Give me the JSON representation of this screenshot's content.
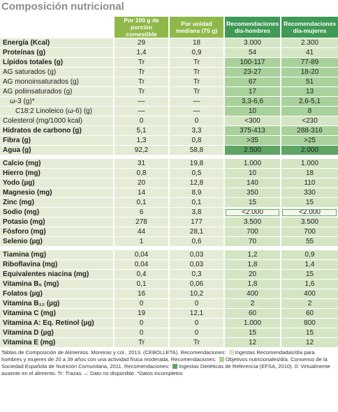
{
  "title": "Composición nutricional",
  "header": {
    "columns": [
      "Por 100 g de porción comestible",
      "Por unidad mediana (75 g)",
      "Recomendaciones día-hombres",
      "Recomendaciones día-mujeres"
    ]
  },
  "sections": [
    {
      "rows": [
        {
          "label": "Energía (Kcal)",
          "values": [
            "29",
            "18",
            "3.000",
            "2.300"
          ]
        },
        {
          "label": "Proteínas (g)",
          "values": [
            "1,4",
            "0,9",
            "54",
            "41"
          ]
        },
        {
          "label": "Lípidos totales (g)",
          "values": [
            "Tr",
            "Tr",
            "100-117",
            "77-89"
          ]
        },
        {
          "label": "AG saturados (g)",
          "values": [
            "Tr",
            "Tr",
            "23-27",
            "18-20"
          ]
        },
        {
          "label": "AG monoinsaturados (g)",
          "values": [
            "Tr",
            "Tr",
            "67",
            "51"
          ]
        },
        {
          "label": "AG poliinsaturados (g)",
          "values": [
            "Tr",
            "Tr",
            "17",
            "13"
          ]
        },
        {
          "label": "ω-3 (g)*",
          "values": [
            "—",
            "—",
            "3,3-6,6",
            "2,6-5,1"
          ]
        },
        {
          "label": "C18:2 Linoleico (ω-6) (g)",
          "values": [
            "—",
            "—",
            "10",
            "8"
          ]
        },
        {
          "label": "Colesterol (mg/1000 kcal)",
          "values": [
            "0",
            "0",
            "<300",
            "<230"
          ]
        },
        {
          "label": "Hidratos de carbono (g)",
          "values": [
            "5,1",
            "3,3",
            "375-413",
            "288-316"
          ]
        },
        {
          "label": "Fibra (g)",
          "values": [
            "1,3",
            "0,8",
            ">35",
            ">25"
          ]
        },
        {
          "label": "Agua (g)",
          "values": [
            "92,2",
            "58,8",
            "2.500",
            "2.000"
          ]
        }
      ]
    },
    {
      "rows": [
        {
          "label": "Calcio (mg)",
          "values": [
            "31",
            "19,8",
            "1.000",
            "1.000"
          ]
        },
        {
          "label": "Hierro (mg)",
          "values": [
            "0,8",
            "0,5",
            "10",
            "18"
          ]
        },
        {
          "label": "Yodo (µg)",
          "values": [
            "20",
            "12,8",
            "140",
            "110"
          ]
        },
        {
          "label": "Magnesio (mg)",
          "values": [
            "14",
            "8,9",
            "350",
            "330"
          ]
        },
        {
          "label": "Zinc (mg)",
          "values": [
            "0,1",
            "0,1",
            "15",
            "15"
          ]
        },
        {
          "label": "Sodio (mg)",
          "values": [
            "6",
            "3,8",
            "<2.000",
            "<2.000"
          ]
        },
        {
          "label": "Potasio (mg)",
          "values": [
            "278",
            "177",
            "3.500",
            "3.500"
          ]
        },
        {
          "label": "Fósforo (mg)",
          "values": [
            "44",
            "28,1",
            "700",
            "700"
          ]
        },
        {
          "label": "Selenio (µg)",
          "values": [
            "1",
            "0,6",
            "70",
            "55"
          ]
        }
      ]
    },
    {
      "rows": [
        {
          "label": "Tiamina (mg)",
          "values": [
            "0,04",
            "0,03",
            "1,2",
            "0,9"
          ]
        },
        {
          "label": "Riboflavina (mg)",
          "values": [
            "0,04",
            "0,03",
            "1,8",
            "1,4"
          ]
        },
        {
          "label": "Equivalentes niacina (mg)",
          "values": [
            "0,4",
            "0,3",
            "20",
            "15"
          ]
        },
        {
          "label": "Vitamina B₆ (mg)",
          "values": [
            "0,1",
            "0,06",
            "1,8",
            "1,6"
          ]
        },
        {
          "label": "Folatos (µg)",
          "values": [
            "16",
            "10,2",
            "400",
            "400"
          ]
        },
        {
          "label": "Vitamina B₁₂ (µg)",
          "values": [
            "0",
            "0",
            "2",
            "2"
          ]
        },
        {
          "label": "Vitamina C (mg)",
          "values": [
            "19",
            "12,1",
            "60",
            "60"
          ]
        },
        {
          "label": "Vitamina A: Eq. Retinol (µg)",
          "values": [
            "0",
            "0",
            "1.000",
            "800"
          ]
        },
        {
          "label": "Vitamina D (µg)",
          "values": [
            "0",
            "0",
            "15",
            "15"
          ]
        },
        {
          "label": "Vitamina E (mg)",
          "values": [
            "Tr",
            "Tr",
            "12",
            "12"
          ]
        }
      ]
    }
  ],
  "footnote": {
    "parts": [
      "Tablas de Composición de Alimentos. Moreiras y col., 2013. (CEBOLLETA). Recomendaciones: ",
      "Ingestas Recomendadas/día para hombres y mujeres de 20 a 39 años con una actividad física moderada. Recomendaciones: ",
      "Objetivos nutricionales/día. Consenso de la Sociedad Española de Nutrición Comunitaria, 2011. Recomendaciones: ",
      "Ingestas Dietéticas de Referencia (EFSA, 2010). 0: Virtualmente ausente en el alimento. Tr: Trazas. –: Dato no disponible. *Datos incompletos"
    ]
  }
}
